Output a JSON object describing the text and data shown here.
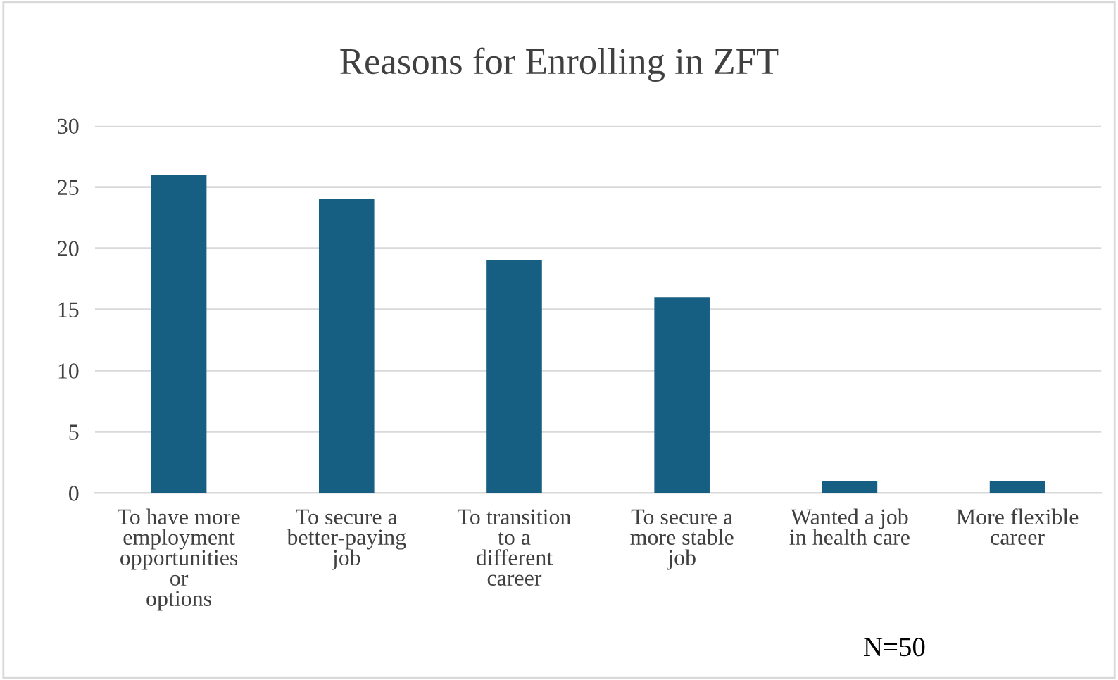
{
  "chart_data": {
    "type": "bar",
    "title": "Reasons for Enrolling in ZFT",
    "categories": [
      "To have more\nemployment\nopportunities\nor\noptions",
      "To secure a\nbetter-paying\njob",
      "To transition\nto a\ndifferent\ncareer",
      "To secure a\nmore stable\njob",
      "Wanted a job\nin health care",
      "More flexible\ncareer"
    ],
    "values": [
      26,
      24,
      19,
      16,
      1,
      1
    ],
    "color": "#175f82",
    "ylim": [
      0,
      30
    ],
    "yticks": [
      0,
      5,
      10,
      15,
      20,
      25,
      30
    ],
    "grid": "y",
    "annotations": [
      "N=50"
    ]
  }
}
